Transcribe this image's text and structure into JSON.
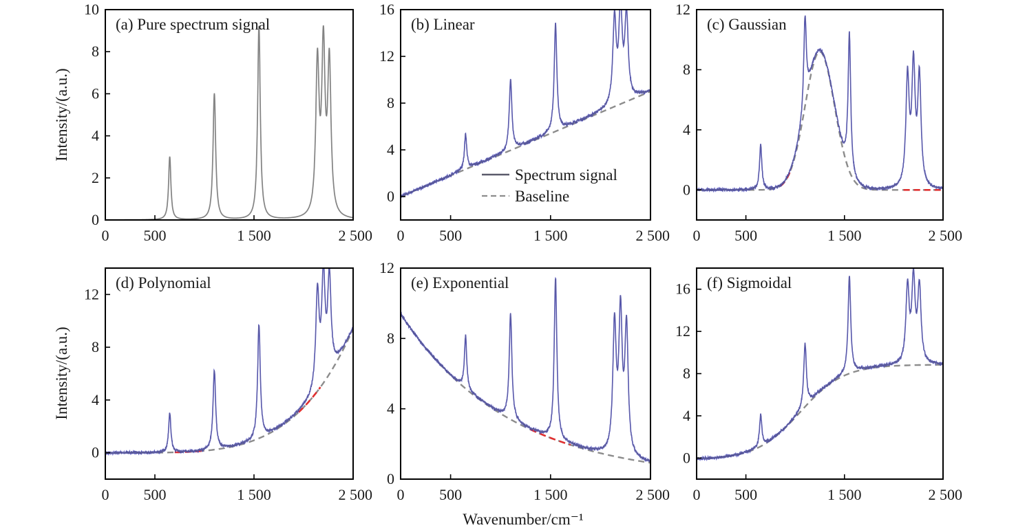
{
  "figure": {
    "y_axis_title": "Intensity/(a.u.)",
    "x_axis_title": "Wavenumber/cm⁻¹",
    "legend": {
      "signal": "Spectrum signal",
      "baseline": "Baseline"
    },
    "colors": {
      "signal_gray": "#8a8a8a",
      "signal_blue": "#3333cc",
      "baseline_gray": "#8c8c8c",
      "baseline_red": "#e03030",
      "frame": "#000000"
    }
  },
  "chart_data": [
    {
      "id": "a",
      "type": "line",
      "title": "(a) Pure spectrum signal",
      "xlabel": "",
      "ylabel": "Intensity/(a.u.)",
      "xlim": [
        0,
        2500
      ],
      "ylim": [
        0,
        10
      ],
      "yticks": [
        0,
        2,
        4,
        6,
        8,
        10
      ],
      "ytick_labels": [
        "0",
        "2",
        "4",
        "6",
        "8",
        "10"
      ],
      "xticks": [
        0,
        500,
        1500,
        2500
      ],
      "xtick_labels": [
        "0",
        "500",
        "1 500",
        "2 500"
      ],
      "baseline": "zero",
      "show_baseline_line": false,
      "noise": false,
      "peaks": [
        [
          650,
          3.0,
          14
        ],
        [
          1100,
          6.0,
          16
        ],
        [
          1550,
          9.2,
          16
        ],
        [
          2140,
          7.2,
          20
        ],
        [
          2200,
          7.8,
          20
        ],
        [
          2260,
          7.2,
          20
        ]
      ]
    },
    {
      "id": "b",
      "type": "line",
      "title": "(b) Linear",
      "xlabel": "",
      "ylabel": "",
      "xlim": [
        0,
        2500
      ],
      "ylim": [
        -2,
        16
      ],
      "yticks": [
        0,
        4,
        8,
        12,
        16
      ],
      "ytick_labels": [
        "0",
        "4",
        "8",
        "12",
        "16"
      ],
      "xticks": [
        0,
        500,
        1500,
        2500
      ],
      "xtick_labels": [
        "0",
        "500",
        "1 500",
        "2 500"
      ],
      "baseline": "linear",
      "show_baseline_line": true,
      "noise": true,
      "peaks": [
        [
          650,
          3.0,
          14
        ],
        [
          1100,
          6.0,
          16
        ],
        [
          1550,
          9.2,
          16
        ],
        [
          2140,
          7.2,
          20
        ],
        [
          2200,
          7.8,
          20
        ],
        [
          2260,
          7.2,
          20
        ]
      ]
    },
    {
      "id": "c",
      "type": "line",
      "title": "(c) Gaussian",
      "xlabel": "",
      "ylabel": "",
      "xlim": [
        0,
        2500
      ],
      "ylim": [
        -2,
        12
      ],
      "yticks": [
        0,
        4,
        8,
        12
      ],
      "ytick_labels": [
        "0",
        "4",
        "8",
        "12"
      ],
      "xticks": [
        0,
        500,
        1500,
        2500
      ],
      "xtick_labels": [
        "0",
        "500",
        "1 500",
        "2 500"
      ],
      "baseline": "gaussian",
      "show_baseline_line": true,
      "noise": true,
      "peaks": [
        [
          650,
          3.0,
          14
        ],
        [
          1100,
          6.0,
          16
        ],
        [
          1550,
          9.2,
          16
        ],
        [
          2140,
          7.2,
          20
        ],
        [
          2200,
          7.8,
          20
        ],
        [
          2260,
          7.2,
          20
        ]
      ]
    },
    {
      "id": "d",
      "type": "line",
      "title": "(d) Polynomial",
      "xlabel": "",
      "ylabel": "Intensity/(a.u.)",
      "xlim": [
        0,
        2500
      ],
      "ylim": [
        -2,
        14
      ],
      "yticks": [
        0,
        4,
        8,
        12
      ],
      "ytick_labels": [
        "0",
        "4",
        "8",
        "12"
      ],
      "xticks": [
        0,
        500,
        1500,
        2500
      ],
      "xtick_labels": [
        "0",
        "500",
        "1 500",
        "2 500"
      ],
      "baseline": "polynomial",
      "show_baseline_line": true,
      "noise": true,
      "peaks": [
        [
          650,
          3.0,
          14
        ],
        [
          1100,
          6.0,
          16
        ],
        [
          1550,
          8.6,
          16
        ],
        [
          2140,
          7.2,
          20
        ],
        [
          2200,
          7.8,
          20
        ],
        [
          2260,
          7.2,
          20
        ]
      ]
    },
    {
      "id": "e",
      "type": "line",
      "title": "(e) Exponential",
      "xlabel": "Wavenumber/cm⁻¹",
      "ylabel": "",
      "xlim": [
        0,
        2500
      ],
      "ylim": [
        0,
        12
      ],
      "yticks": [
        0,
        4,
        8,
        12
      ],
      "ytick_labels": [
        "0",
        "4",
        "8",
        "12"
      ],
      "xticks": [
        0,
        500,
        1500,
        2500
      ],
      "xtick_labels": [
        "0",
        "500",
        "1 500",
        "2 500"
      ],
      "baseline": "exponential",
      "show_baseline_line": true,
      "noise": true,
      "peaks": [
        [
          650,
          3.0,
          14
        ],
        [
          1100,
          6.0,
          16
        ],
        [
          1550,
          9.2,
          16
        ],
        [
          2140,
          7.2,
          20
        ],
        [
          2200,
          7.8,
          20
        ],
        [
          2260,
          7.2,
          20
        ]
      ]
    },
    {
      "id": "f",
      "type": "line",
      "title": "(f) Sigmoidal",
      "xlabel": "",
      "ylabel": "",
      "xlim": [
        0,
        2500
      ],
      "ylim": [
        -2,
        18
      ],
      "yticks": [
        0,
        4,
        8,
        12,
        16
      ],
      "ytick_labels": [
        "0",
        "4",
        "8",
        "12",
        "16"
      ],
      "xticks": [
        0,
        500,
        1500,
        2500
      ],
      "xtick_labels": [
        "0",
        "500",
        "1 500",
        "2 500"
      ],
      "baseline": "sigmoidal",
      "show_baseline_line": true,
      "noise": true,
      "peaks": [
        [
          650,
          3.0,
          14
        ],
        [
          1100,
          6.0,
          16
        ],
        [
          1550,
          9.2,
          16
        ],
        [
          2140,
          7.2,
          20
        ],
        [
          2200,
          7.8,
          20
        ],
        [
          2260,
          7.2,
          20
        ]
      ]
    }
  ]
}
